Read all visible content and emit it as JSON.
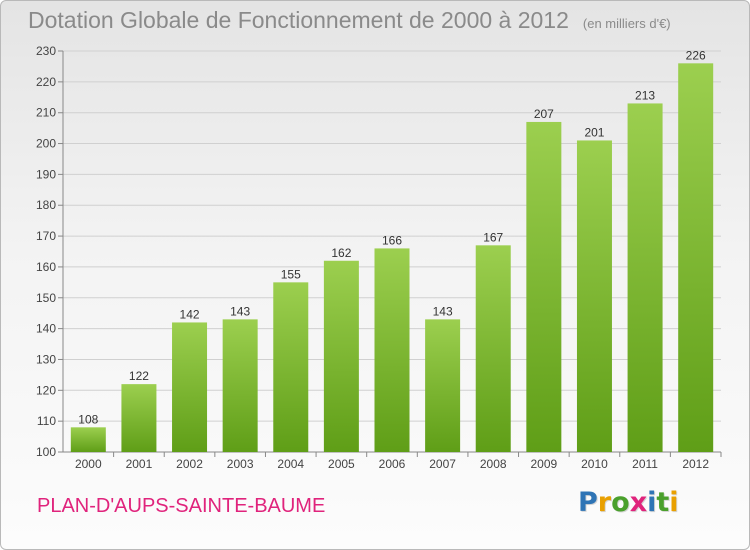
{
  "chart_data": {
    "type": "bar",
    "title": "Dotation Globale de Fonctionnement de 2000 à 2012",
    "subtitle": "(en milliers d'€)",
    "xlabel": "",
    "ylabel": "",
    "categories": [
      "2000",
      "2001",
      "2002",
      "2003",
      "2004",
      "2005",
      "2006",
      "2007",
      "2008",
      "2009",
      "2010",
      "2011",
      "2012"
    ],
    "values": [
      108,
      122,
      142,
      143,
      155,
      162,
      166,
      143,
      167,
      207,
      201,
      213,
      226
    ],
    "ylim": [
      100,
      230
    ],
    "yticks": [
      100,
      110,
      120,
      130,
      140,
      150,
      160,
      170,
      180,
      190,
      200,
      210,
      220,
      230
    ],
    "grid": true,
    "bar_color_top": "#9ccf4f",
    "bar_color_bottom": "#5f9e17"
  },
  "footer": {
    "commune": "PLAN-D'AUPS-SAINTE-BAUME",
    "commune_color": "#e0237c"
  },
  "logo": {
    "text": "Proxiti",
    "letter_colors": [
      "#2e74b5",
      "#e9a000",
      "#4aa02c",
      "#e0237c",
      "#2e74b5",
      "#4aa02c",
      "#e9a000"
    ]
  }
}
